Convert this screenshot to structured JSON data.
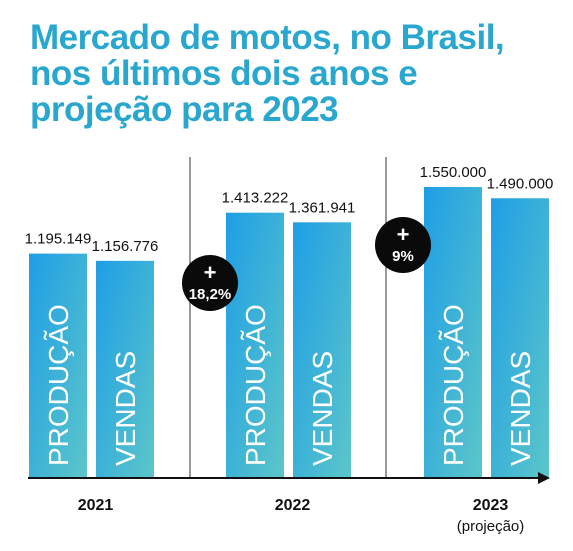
{
  "chart_data": {
    "type": "bar",
    "title": "Mercado de motos, no Brasil, nos últimos dois anos e projeção para 2023",
    "categories": [
      "2021",
      "2022",
      "2023"
    ],
    "category_notes": [
      "",
      "",
      "(projeção)"
    ],
    "series": [
      {
        "name": "PRODUÇÃO",
        "values": [
          1195149,
          1413222,
          1550000
        ],
        "labels": [
          "1.195.149",
          "1.413.222",
          "1.550.000"
        ]
      },
      {
        "name": "VENDAS",
        "values": [
          1156776,
          1361941,
          1490000
        ],
        "labels": [
          "1.156.776",
          "1.361.941",
          "1.490.000"
        ]
      }
    ],
    "annotations": [
      {
        "between": [
          "2021",
          "2022"
        ],
        "plus": "+",
        "text": "18,2%"
      },
      {
        "between": [
          "2022",
          "2023"
        ],
        "plus": "+",
        "text": "9%"
      }
    ],
    "ylim": [
      0,
      1600000
    ],
    "grid": false,
    "legend": "none",
    "colors": {
      "bar_top": "#1e9ee6",
      "bar_bottom": "#5cc6c9",
      "title": "#2aa7cf",
      "badge": "#0a0a0a"
    }
  }
}
